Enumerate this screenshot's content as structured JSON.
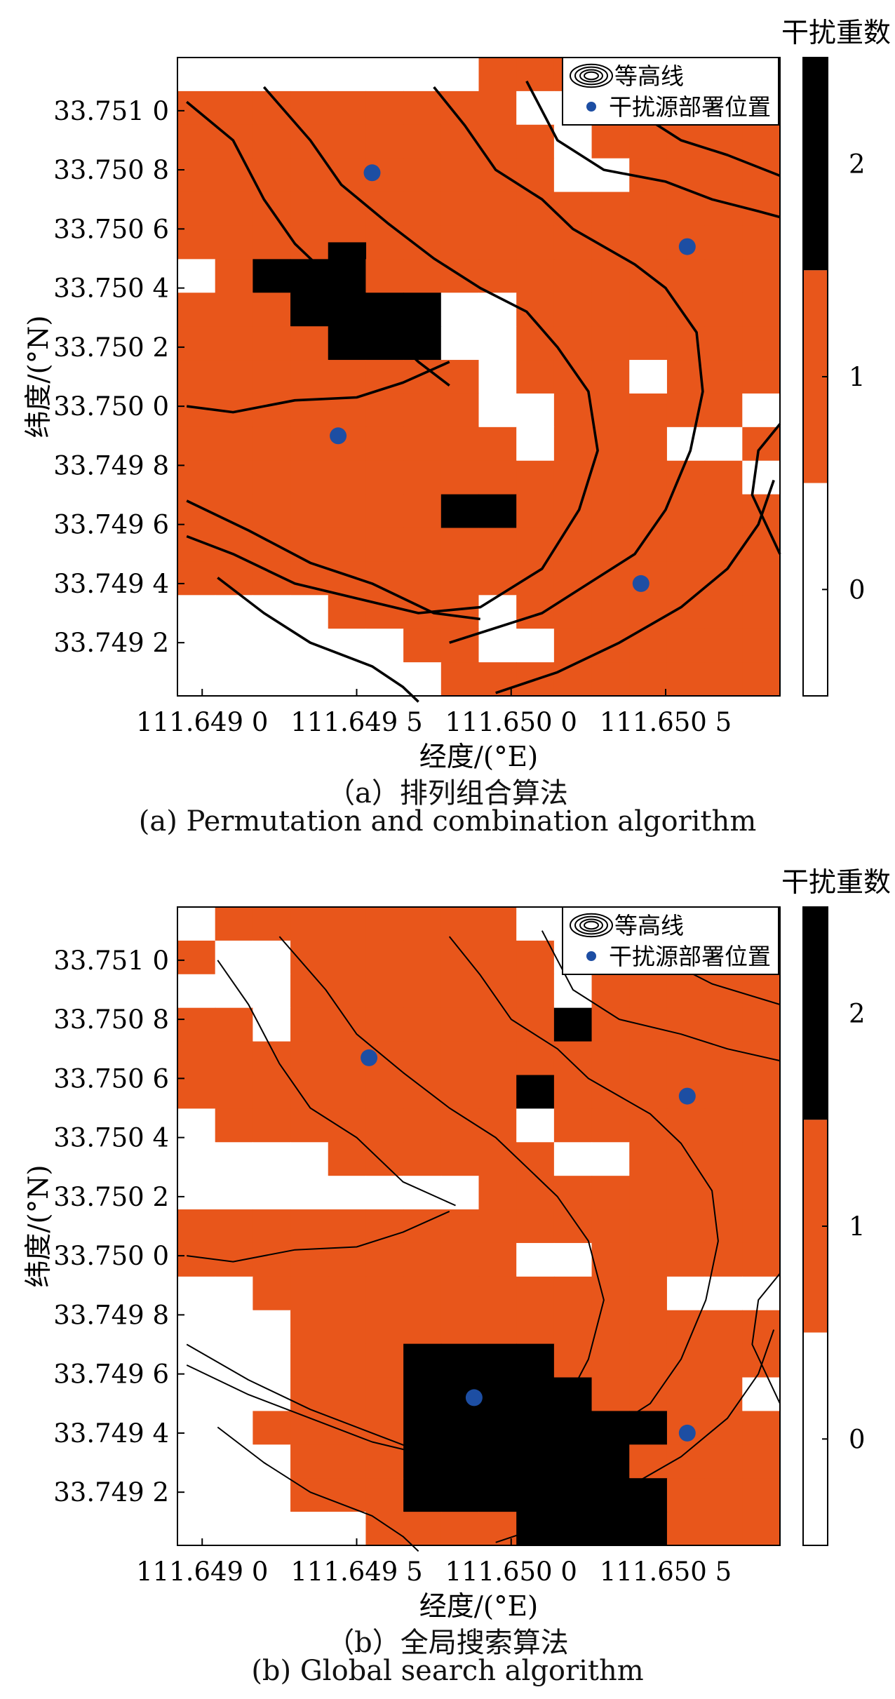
{
  "colors": {
    "zero": "#ffffff",
    "one": "#e8561b",
    "two": "#000000",
    "dot": "#1d4ea3"
  },
  "panels": [
    {
      "caption_cn": "（a）排列组合算法",
      "caption_en": "(a) Permutation and combination algorithm",
      "chart_data": {
        "type": "heatmap",
        "xlabel": "经度/(°E)",
        "ylabel": "纬度/(°N)",
        "xlim": [
          111.64892,
          111.65087
        ],
        "ylim": [
          33.74902,
          33.75118
        ],
        "xticks": [
          "111.649 0",
          "111.649 5",
          "111.650 0",
          "111.650 5"
        ],
        "xtick_values": [
          111.649,
          111.6495,
          111.65,
          111.6505
        ],
        "yticks": [
          "33.751 0",
          "33.750 8",
          "33.750 6",
          "33.750 4",
          "33.750 2",
          "33.750 0",
          "33.749 8",
          "33.749 6",
          "33.749 4",
          "33.749 2"
        ],
        "ytick_values": [
          33.751,
          33.7508,
          33.7506,
          33.7504,
          33.7502,
          33.75,
          33.7498,
          33.7496,
          33.7494,
          33.7492
        ],
        "colorbar_title": "干扰重数",
        "colorbar_ticks": [
          "2",
          "1",
          "0"
        ],
        "legend": {
          "contour_label": "等高线",
          "source_label": "干扰源部署位置",
          "position": "top-right"
        },
        "grid": [
          "0000000011111111",
          "1111111110011111",
          "1111111111011111",
          "1111111111001111",
          "1111111111111111",
          "1111111111111111",
          "0122311111111111",
          "1112222001111111",
          "1111222001111111",
          "1111111101110111",
          "1111111100111110",
          "1111111110111001",
          "1111111111111110",
          "1111111221111111",
          "1111111111111111",
          "1111111111111111",
          "0000111101111111",
          "0000001100111111",
          "0000000111111111"
        ],
        "sources": [
          [
            111.64955,
            33.75079
          ],
          [
            111.65057,
            33.75054
          ],
          [
            111.64944,
            33.7499
          ],
          [
            111.65042,
            33.7494
          ]
        ],
        "contours": [
          [
            [
              111.64895,
              33.75103
            ],
            [
              111.6491,
              33.7509
            ],
            [
              111.6492,
              33.7507
            ],
            [
              111.6493,
              33.75055
            ],
            [
              111.6494,
              33.75045
            ],
            [
              111.64955,
              33.7503
            ],
            [
              111.6497,
              33.75015
            ],
            [
              111.6498,
              33.75007
            ]
          ],
          [
            [
              111.6492,
              33.75108
            ],
            [
              111.64935,
              33.7509
            ],
            [
              111.64945,
              33.75075
            ],
            [
              111.6496,
              33.75062
            ],
            [
              111.64975,
              33.7505
            ],
            [
              111.6499,
              33.7504
            ],
            [
              111.65005,
              33.75032
            ],
            [
              111.65015,
              33.7502
            ],
            [
              111.65025,
              33.75005
            ],
            [
              111.65028,
              33.74985
            ],
            [
              111.65022,
              33.74965
            ],
            [
              111.6501,
              33.74945
            ],
            [
              111.6499,
              33.74932
            ],
            [
              111.6497,
              33.7493
            ],
            [
              111.6495,
              33.74935
            ],
            [
              111.6493,
              33.7494
            ],
            [
              111.6491,
              33.7495
            ],
            [
              111.64895,
              33.74956
            ]
          ],
          [
            [
              111.64975,
              33.75108
            ],
            [
              111.64985,
              33.75095
            ],
            [
              111.64995,
              33.7508
            ],
            [
              111.6501,
              33.7507
            ],
            [
              111.6502,
              33.7506
            ],
            [
              111.6504,
              33.75048
            ],
            [
              111.6505,
              33.7504
            ],
            [
              111.6506,
              33.75025
            ],
            [
              111.65062,
              33.75005
            ],
            [
              111.65058,
              33.74985
            ],
            [
              111.6505,
              33.74965
            ],
            [
              111.6504,
              33.7495
            ],
            [
              111.65025,
              33.7494
            ],
            [
              111.6501,
              33.7493
            ],
            [
              111.64995,
              33.74925
            ],
            [
              111.6498,
              33.7492
            ]
          ],
          [
            [
              111.65005,
              33.7511
            ],
            [
              111.65015,
              33.7509
            ],
            [
              111.6503,
              33.7508
            ],
            [
              111.6505,
              33.75076
            ],
            [
              111.65065,
              33.7507
            ],
            [
              111.6508,
              33.75066
            ],
            [
              111.65087,
              33.75064
            ]
          ],
          [
            [
              111.6503,
              33.7511
            ],
            [
              111.6504,
              33.751
            ],
            [
              111.65055,
              33.7509
            ],
            [
              111.6507,
              33.75085
            ],
            [
              111.65087,
              33.75078
            ]
          ],
          [
            [
              111.64895,
              33.75
            ],
            [
              111.6491,
              33.74998
            ],
            [
              111.6493,
              33.75002
            ],
            [
              111.6495,
              33.75003
            ],
            [
              111.64965,
              33.75008
            ],
            [
              111.6498,
              33.75015
            ]
          ],
          [
            [
              111.64895,
              33.74968
            ],
            [
              111.64915,
              33.74958
            ],
            [
              111.64935,
              33.74947
            ],
            [
              111.64955,
              33.7494
            ],
            [
              111.64975,
              33.7493
            ],
            [
              111.6499,
              33.74928
            ]
          ],
          [
            [
              111.64905,
              33.74942
            ],
            [
              111.6492,
              33.7493
            ],
            [
              111.64935,
              33.7492
            ],
            [
              111.64955,
              33.74912
            ],
            [
              111.64965,
              33.74905
            ],
            [
              111.6497,
              33.749
            ]
          ],
          [
            [
              111.64995,
              33.74903
            ],
            [
              111.65015,
              33.7491
            ],
            [
              111.65035,
              33.7492
            ],
            [
              111.65055,
              33.74932
            ],
            [
              111.6507,
              33.74945
            ],
            [
              111.6508,
              33.7496
            ],
            [
              111.65085,
              33.74975
            ]
          ],
          [
            [
              111.65087,
              33.74994
            ],
            [
              111.6508,
              33.74985
            ],
            [
              111.65078,
              33.7497
            ],
            [
              111.65087,
              33.7495
            ]
          ]
        ]
      }
    },
    {
      "caption_cn": "（b）全局搜索算法",
      "caption_en": "(b) Global search algorithm",
      "chart_data": {
        "type": "heatmap",
        "xlabel": "经度/(°E)",
        "ylabel": "纬度/(°N)",
        "xlim": [
          111.64892,
          111.65087
        ],
        "ylim": [
          33.74902,
          33.75118
        ],
        "xticks": [
          "111.649 0",
          "111.649 5",
          "111.650 0",
          "111.650 5"
        ],
        "xtick_values": [
          111.649,
          111.6495,
          111.65,
          111.6505
        ],
        "yticks": [
          "33.751 0",
          "33.750 8",
          "33.750 6",
          "33.750 4",
          "33.750 2",
          "33.750 0",
          "33.749 8",
          "33.749 6",
          "33.749 4",
          "33.749 2"
        ],
        "ytick_values": [
          33.751,
          33.7508,
          33.7506,
          33.7504,
          33.7502,
          33.75,
          33.7498,
          33.7496,
          33.7494,
          33.7492
        ],
        "colorbar_title": "干扰重数",
        "colorbar_ticks": [
          "2",
          "1",
          "0"
        ],
        "legend": {
          "contour_label": "等高线",
          "source_label": "干扰源部署位置",
          "position": "top-right"
        },
        "grid": [
          "0111111110011111",
          "1001111111011111",
          "0001111111011111",
          "1101111111211111",
          "1111111111111111",
          "1111111112111111",
          "0111111110111111",
          "0000111111001111",
          "0000000011111111",
          "1111111111111111",
          "1111111110011111",
          "0011111111111000",
          "0001111111111111",
          "0001112222111111",
          "0001112222211110",
          "0011112222222111",
          "0001112222221111",
          "0001112222222111",
          "0000011112222111"
        ],
        "sources": [
          [
            111.64954,
            33.75067
          ],
          [
            111.65057,
            33.75054
          ],
          [
            111.64988,
            33.74952
          ],
          [
            111.65057,
            33.7494
          ]
        ],
        "contours": [
          [
            [
              111.64905,
              33.751
            ],
            [
              111.64915,
              33.75085
            ],
            [
              111.64925,
              33.75065
            ],
            [
              111.64935,
              33.7505
            ],
            [
              111.6495,
              33.7504
            ],
            [
              111.64965,
              33.75025
            ],
            [
              111.64982,
              33.75017
            ]
          ],
          [
            [
              111.64925,
              33.75108
            ],
            [
              111.6494,
              33.7509
            ],
            [
              111.6495,
              33.75075
            ],
            [
              111.64965,
              33.75062
            ],
            [
              111.6498,
              33.7505
            ],
            [
              111.64995,
              33.7504
            ],
            [
              111.65005,
              33.7503
            ],
            [
              111.65015,
              33.7502
            ],
            [
              111.65025,
              33.75005
            ],
            [
              111.6503,
              33.74985
            ],
            [
              111.65025,
              33.74965
            ],
            [
              111.65015,
              33.74945
            ],
            [
              111.64995,
              33.74935
            ],
            [
              111.64975,
              33.74932
            ],
            [
              111.64955,
              33.74937
            ],
            [
              111.64935,
              33.74945
            ],
            [
              111.64915,
              33.74953
            ],
            [
              111.64895,
              33.74963
            ]
          ],
          [
            [
              111.6498,
              33.75108
            ],
            [
              111.6499,
              33.75095
            ],
            [
              111.65,
              33.7508
            ],
            [
              111.65015,
              33.7507
            ],
            [
              111.65025,
              33.7506
            ],
            [
              111.65045,
              33.75048
            ],
            [
              111.65055,
              33.75038
            ],
            [
              111.65065,
              33.75022
            ],
            [
              111.65067,
              33.75005
            ],
            [
              111.65063,
              33.74985
            ],
            [
              111.65055,
              33.74965
            ],
            [
              111.65045,
              33.7495
            ],
            [
              111.6503,
              33.7494
            ],
            [
              111.65015,
              33.7493
            ],
            [
              111.65,
              33.74925
            ],
            [
              111.64985,
              33.7492
            ]
          ],
          [
            [
              111.6501,
              33.7511
            ],
            [
              111.6502,
              33.7509
            ],
            [
              111.65035,
              33.7508
            ],
            [
              111.65055,
              33.75075
            ],
            [
              111.6507,
              33.7507
            ],
            [
              111.65087,
              33.75066
            ]
          ],
          [
            [
              111.6504,
              33.7511
            ],
            [
              111.6505,
              33.751
            ],
            [
              111.65065,
              33.75092
            ],
            [
              111.65087,
              33.75085
            ]
          ],
          [
            [
              111.64895,
              33.75
            ],
            [
              111.6491,
              33.74998
            ],
            [
              111.6493,
              33.75002
            ],
            [
              111.6495,
              33.75003
            ],
            [
              111.64965,
              33.75008
            ],
            [
              111.6498,
              33.75015
            ]
          ],
          [
            [
              111.64895,
              33.7497
            ],
            [
              111.64915,
              33.74958
            ],
            [
              111.64935,
              33.74948
            ],
            [
              111.64955,
              33.7494
            ],
            [
              111.64975,
              33.74932
            ],
            [
              111.6499,
              33.74928
            ]
          ],
          [
            [
              111.64905,
              33.74942
            ],
            [
              111.6492,
              33.7493
            ],
            [
              111.64935,
              33.7492
            ],
            [
              111.64955,
              33.74912
            ],
            [
              111.64965,
              33.74905
            ],
            [
              111.6497,
              33.749
            ]
          ],
          [
            [
              111.64995,
              33.74903
            ],
            [
              111.65015,
              33.7491
            ],
            [
              111.65035,
              33.7492
            ],
            [
              111.65055,
              33.74932
            ],
            [
              111.6507,
              33.74945
            ],
            [
              111.6508,
              33.7496
            ],
            [
              111.65085,
              33.74975
            ]
          ],
          [
            [
              111.65087,
              33.74994
            ],
            [
              111.6508,
              33.74985
            ],
            [
              111.65078,
              33.7497
            ],
            [
              111.65087,
              33.7495
            ]
          ]
        ]
      }
    }
  ]
}
